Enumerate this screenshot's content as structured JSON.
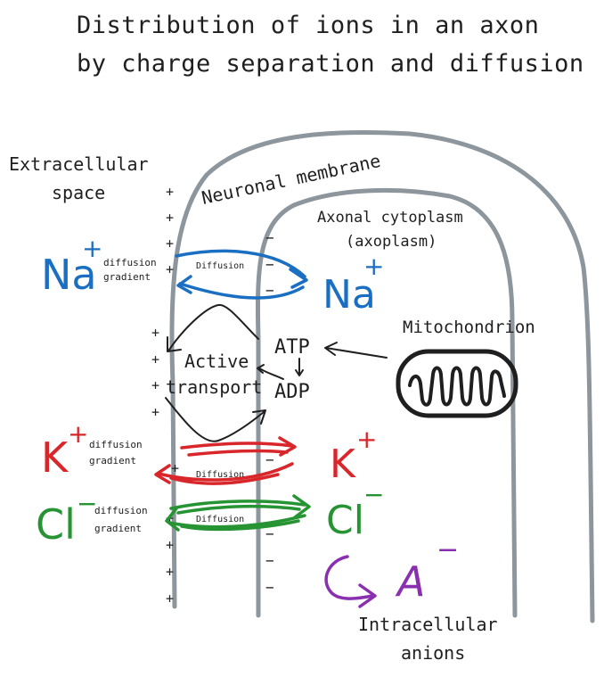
{
  "title": {
    "line1": "Distribution of ions in an axon",
    "line2": "by charge separation and diffusion"
  },
  "labels": {
    "extracellular_line1": "Extracellular",
    "extracellular_line2": "space",
    "membrane": "Neuronal membrane",
    "cytoplasm_line1": "Axonal cytoplasm",
    "cytoplasm_line2": "(axoplasm)",
    "mitochondrion": "Mitochondrion",
    "active_line1": "Active",
    "active_line2": "transport",
    "atp": "ATP",
    "adp": "ADP",
    "intracellular_line1": "Intracellular",
    "intracellular_line2": "anions"
  },
  "ions": {
    "na_outside": {
      "symbol": "Na",
      "charge": "+"
    },
    "na_inside": {
      "symbol": "Na",
      "charge": "+"
    },
    "k_outside": {
      "symbol": "K",
      "charge": "+"
    },
    "k_inside": {
      "symbol": "K",
      "charge": "+"
    },
    "cl_outside": {
      "symbol": "Cl",
      "charge": "−"
    },
    "cl_inside": {
      "symbol": "Cl",
      "charge": "−"
    },
    "anion": {
      "symbol": "A",
      "charge": "−"
    }
  },
  "gradients": {
    "diffusion_word": "diffusion",
    "gradient_word": "gradient",
    "arrow_label": "Diffusion"
  },
  "charges": {
    "positive": "+",
    "negative": "−"
  },
  "colors": {
    "sodium": "#1b6fc2",
    "potassium": "#d8262a",
    "chloride": "#279434",
    "anion": "#8a2fb0",
    "membrane": "#8d969d",
    "ink": "#1f1f1f"
  }
}
